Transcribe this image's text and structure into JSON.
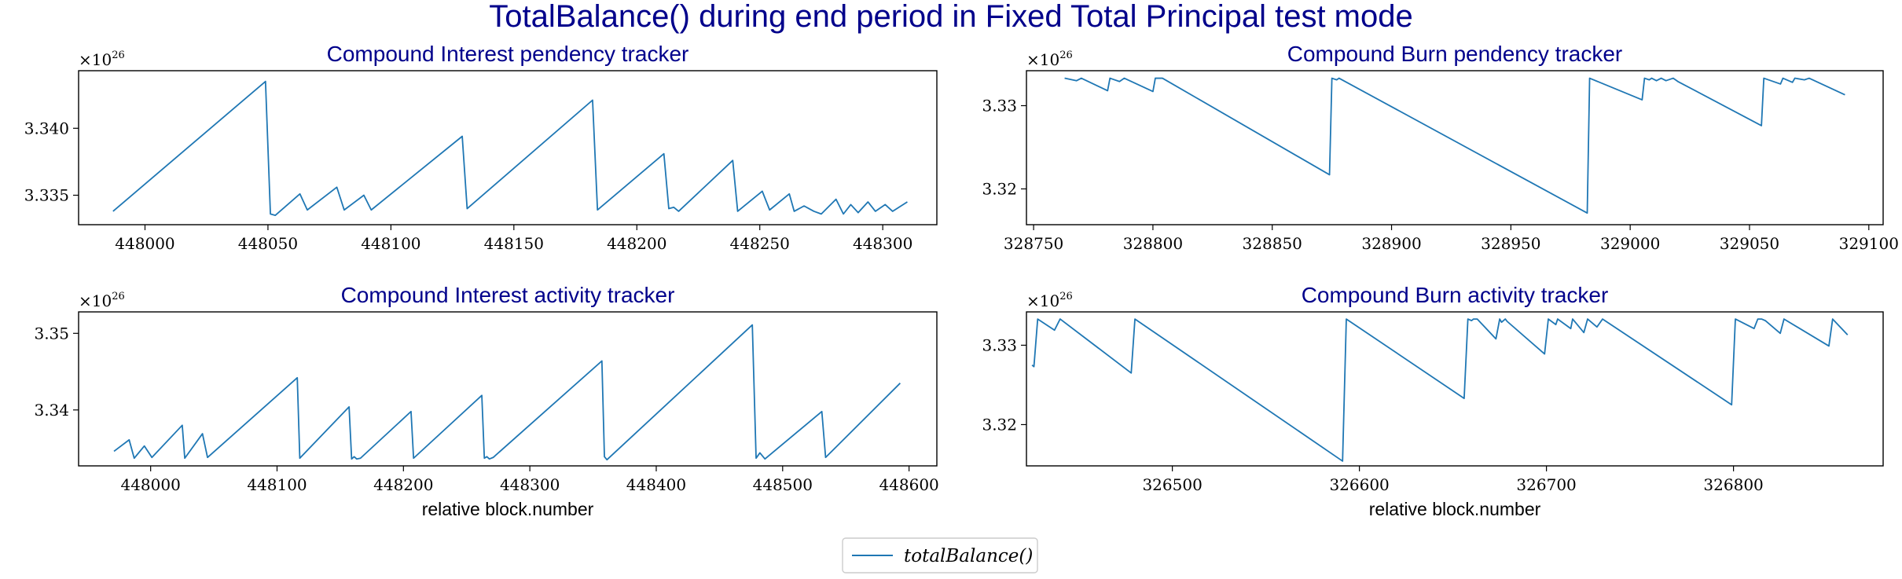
{
  "figure": {
    "suptitle": "TotalBalance() during end period in Fixed Total Principal test mode",
    "legend": {
      "label": "totalBalance()",
      "color": "#1f77b4"
    },
    "title_color": "#00008b"
  },
  "chart_data": [
    {
      "type": "line",
      "title": "Compound Interest pendency tracker",
      "xlabel": "",
      "ylabel": "",
      "y_multiplier": {
        "base": "×10",
        "exp": "26"
      },
      "xlim": [
        447973,
        448322
      ],
      "ylim": [
        3.3328,
        3.3443
      ],
      "xticks": [
        448000,
        448050,
        448100,
        448150,
        448200,
        448250,
        448300
      ],
      "yticks": [
        3.335,
        3.34
      ],
      "ytick_labels": [
        "3.335",
        "3.340"
      ],
      "series": [
        {
          "x": [
            447987,
            448049,
            448051,
            448053,
            448063,
            448066,
            448078,
            448081,
            448089,
            448092,
            448129,
            448131,
            448182,
            448184,
            448211,
            448213,
            448215,
            448217,
            448239,
            448241,
            448251,
            448254,
            448262,
            448264,
            448268,
            448270,
            448272,
            448275,
            448281,
            448284,
            448287,
            448290,
            448294,
            448297,
            448301,
            448304,
            448310
          ],
          "y": [
            3.3338,
            3.3435,
            3.3336,
            3.3335,
            3.3351,
            3.3339,
            3.3356,
            3.3339,
            3.335,
            3.3339,
            3.3394,
            3.334,
            3.3421,
            3.3339,
            3.3381,
            3.334,
            3.3341,
            3.3338,
            3.3376,
            3.3338,
            3.3353,
            3.3339,
            3.3351,
            3.3338,
            3.3342,
            3.334,
            3.3338,
            3.3336,
            3.3347,
            3.3336,
            3.3343,
            3.3337,
            3.3345,
            3.3338,
            3.3343,
            3.3338,
            3.3345
          ]
        }
      ]
    },
    {
      "type": "line",
      "title": "Compound Burn pendency tracker",
      "xlabel": "",
      "ylabel": "",
      "y_multiplier": {
        "base": "×10",
        "exp": "26"
      },
      "xlim": [
        328747,
        329106
      ],
      "ylim": [
        3.3157,
        3.3342
      ],
      "xticks": [
        328750,
        328800,
        328850,
        328900,
        328950,
        329000,
        329050,
        329100
      ],
      "yticks": [
        3.32,
        3.33
      ],
      "ytick_labels": [
        "3.32",
        "3.33"
      ],
      "series": [
        {
          "x": [
            328763,
            328768,
            328770,
            328781,
            328782,
            328786,
            328788,
            328800,
            328801,
            328804,
            328874,
            328875,
            328877,
            328878,
            328982,
            328983,
            329005,
            329006,
            329008,
            329009,
            329011,
            329013,
            329015,
            329018,
            329020,
            329055,
            329056,
            329063,
            329064,
            329068,
            329069,
            329073,
            329075,
            329090
          ],
          "y": [
            3.3333,
            3.333,
            3.3333,
            3.3318,
            3.3333,
            3.3329,
            3.3333,
            3.3317,
            3.3333,
            3.3333,
            3.3217,
            3.3333,
            3.3331,
            3.3333,
            3.3171,
            3.3333,
            3.3307,
            3.3333,
            3.3331,
            3.3333,
            3.333,
            3.3333,
            3.333,
            3.3333,
            3.3329,
            3.3276,
            3.3333,
            3.3326,
            3.3333,
            3.3328,
            3.3333,
            3.3331,
            3.3333,
            3.3313
          ]
        }
      ]
    },
    {
      "type": "line",
      "title": "Compound Interest activity tracker",
      "xlabel": "relative block.number",
      "ylabel": "",
      "y_multiplier": {
        "base": "×10",
        "exp": "26"
      },
      "xlim": [
        447943,
        448622
      ],
      "ylim": [
        3.3327,
        3.3528
      ],
      "xticks": [
        448000,
        448100,
        448200,
        448300,
        448400,
        448500,
        448600
      ],
      "yticks": [
        3.34,
        3.35
      ],
      "ytick_labels": [
        "3.34",
        "3.35"
      ],
      "series": [
        {
          "x": [
            447971,
            447983,
            447987,
            447995,
            448001,
            448025,
            448027,
            448041,
            448045,
            448116,
            448118,
            448157,
            448159,
            448161,
            448163,
            448166,
            448206,
            448208,
            448262,
            448264,
            448266,
            448268,
            448271,
            448357,
            448359,
            448361,
            448476,
            448479,
            448482,
            448486,
            448531,
            448534,
            448593
          ],
          "y": [
            3.3346,
            3.3361,
            3.3337,
            3.3353,
            3.3338,
            3.338,
            3.3337,
            3.3369,
            3.3338,
            3.3442,
            3.3337,
            3.3404,
            3.3336,
            3.3339,
            3.3336,
            3.3337,
            3.3398,
            3.3337,
            3.3419,
            3.3337,
            3.3339,
            3.3336,
            3.3338,
            3.3464,
            3.3339,
            3.3335,
            3.3511,
            3.3337,
            3.3344,
            3.3336,
            3.3398,
            3.3338,
            3.3435
          ]
        }
      ]
    },
    {
      "type": "line",
      "title": "Compound Burn activity tracker",
      "xlabel": "relative block.number",
      "ylabel": "",
      "y_multiplier": {
        "base": "×10",
        "exp": "26"
      },
      "xlim": [
        326422,
        326880
      ],
      "ylim": [
        3.3148,
        3.3342
      ],
      "xticks": [
        326500,
        326600,
        326700,
        326800
      ],
      "yticks": [
        3.32,
        3.33
      ],
      "ytick_labels": [
        "3.32",
        "3.33"
      ],
      "series": [
        {
          "x": [
            326425,
            326426,
            326428,
            326437,
            326440,
            326478,
            326480,
            326591,
            326593,
            326656,
            326658,
            326660,
            326661,
            326663,
            326673,
            326675,
            326676,
            326678,
            326679,
            326699,
            326701,
            326705,
            326706,
            326713,
            326714,
            326720,
            326722,
            326727,
            326730,
            326799,
            326801,
            326811,
            326813,
            326815,
            326817,
            326825,
            326827,
            326851,
            326853,
            326861
          ],
          "y": [
            3.3275,
            3.3273,
            3.3333,
            3.3319,
            3.3333,
            3.3265,
            3.3333,
            3.3154,
            3.3333,
            3.3233,
            3.3333,
            3.3331,
            3.3333,
            3.3333,
            3.3308,
            3.3333,
            3.3329,
            3.3333,
            3.333,
            3.3289,
            3.3333,
            3.3326,
            3.3333,
            3.3321,
            3.3333,
            3.3316,
            3.3333,
            3.3323,
            3.3333,
            3.3225,
            3.3333,
            3.3321,
            3.3333,
            3.3333,
            3.3331,
            3.3315,
            3.3333,
            3.3299,
            3.3333,
            3.3313
          ]
        }
      ]
    }
  ]
}
